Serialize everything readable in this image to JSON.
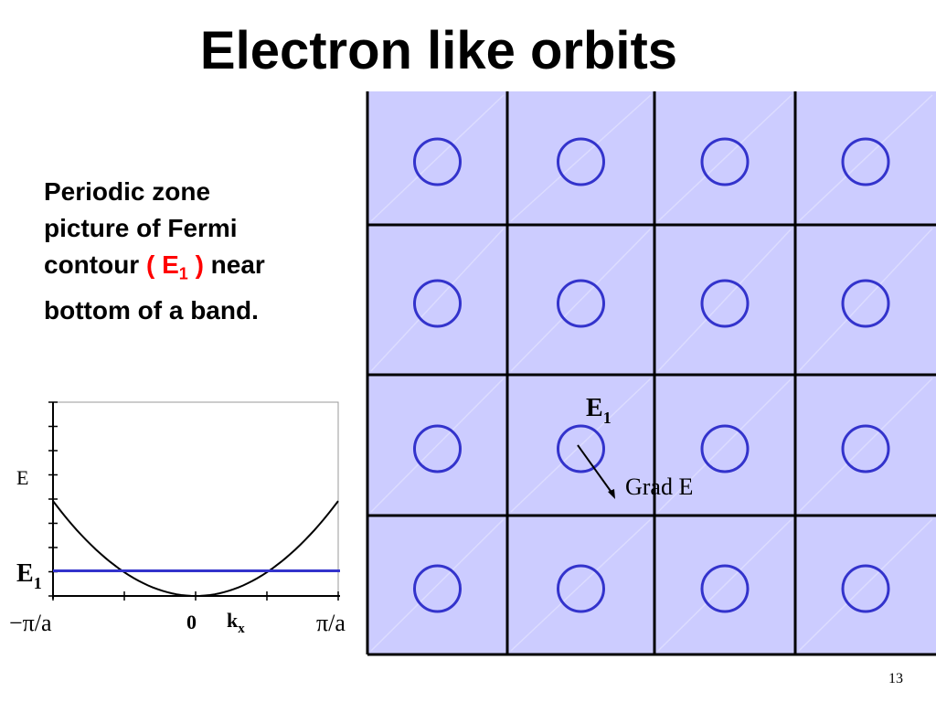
{
  "slide": {
    "title": "Electron like orbits",
    "description": {
      "line1": "Periodic zone",
      "line2": "picture of Fermi",
      "line3_prefix": "contour ",
      "highlight_open": "( E",
      "highlight_sub": "1",
      "highlight_close": " )",
      "line3_suffix": " near",
      "line4": "bottom of  a band."
    },
    "slide_number": "13"
  },
  "lattice": {
    "rows": 4,
    "cols": 4,
    "cell_color": "#ccccff",
    "contour_color": "#3333cc",
    "label_e1": "E",
    "label_e1_sub": "1",
    "label_grad": "Grad E"
  },
  "band_plot": {
    "ylabel": "E",
    "e1_label": "E",
    "e1_sub": "1",
    "xlabel": "k",
    "xlabel_sub": "x",
    "tick_left": "−π/a",
    "tick_zero": "0",
    "tick_right": "π/a",
    "curve_color": "#000000",
    "fermi_line_color": "#3333cc",
    "xlim": [
      -1,
      1
    ],
    "ylim": [
      0,
      1
    ],
    "fermi_level": 0.13
  }
}
